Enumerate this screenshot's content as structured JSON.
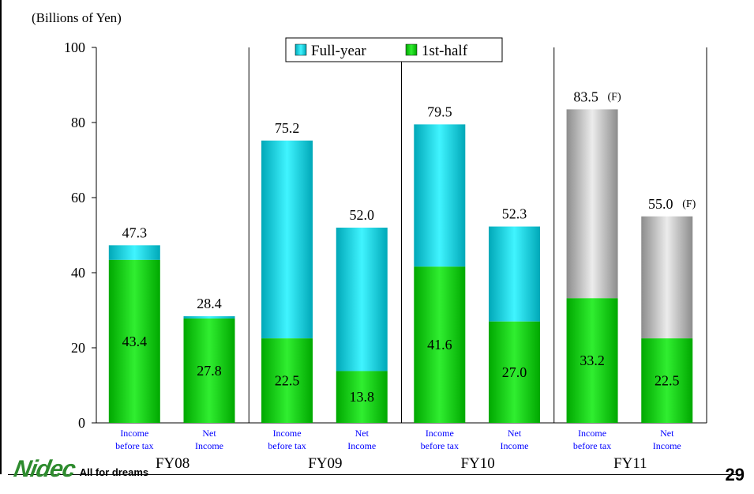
{
  "chart_data": {
    "type": "bar",
    "stacked": true,
    "unit_label": "(Billions of Yen)",
    "ylim": [
      0,
      100
    ],
    "yticks": [
      0,
      20,
      40,
      60,
      80,
      100
    ],
    "grid": false,
    "legend_position": "top-center",
    "legend": [
      {
        "label": "Full-year",
        "color": "#00c8d8"
      },
      {
        "label": "1st-half",
        "color": "#00c000"
      }
    ],
    "groups": [
      {
        "label": "FY08",
        "bars": [
          {
            "category": [
              "Income",
              "before tax"
            ],
            "full_year": 47.3,
            "first_half": 43.4,
            "full_year_label": "47.3",
            "first_half_label": "43.4",
            "forecast": false
          },
          {
            "category": [
              "Net",
              "Income"
            ],
            "full_year": 28.4,
            "first_half": 27.8,
            "full_year_label": "28.4",
            "first_half_label": "27.8",
            "forecast": false
          }
        ]
      },
      {
        "label": "FY09",
        "bars": [
          {
            "category": [
              "Income",
              "before tax"
            ],
            "full_year": 75.2,
            "first_half": 22.5,
            "full_year_label": "75.2",
            "first_half_label": "22.5",
            "forecast": false
          },
          {
            "category": [
              "Net",
              "Income"
            ],
            "full_year": 52.0,
            "first_half": 13.8,
            "full_year_label": "52.0",
            "first_half_label": "13.8",
            "forecast": false
          }
        ]
      },
      {
        "label": "FY10",
        "bars": [
          {
            "category": [
              "Income",
              "before tax"
            ],
            "full_year": 79.5,
            "first_half": 41.6,
            "full_year_label": "79.5",
            "first_half_label": "41.6",
            "forecast": false
          },
          {
            "category": [
              "Net",
              "Income"
            ],
            "full_year": 52.3,
            "first_half": 27.0,
            "full_year_label": "52.3",
            "first_half_label": "27.0",
            "forecast": false
          }
        ]
      },
      {
        "label": "FY11",
        "bars": [
          {
            "category": [
              "Income",
              "before tax"
            ],
            "full_year": 83.5,
            "first_half": 33.2,
            "full_year_label": "83.5",
            "first_half_label": "33.2",
            "forecast": true
          },
          {
            "category": [
              "Net",
              "Income"
            ],
            "full_year": 55.0,
            "first_half": 22.5,
            "full_year_label": "55.0",
            "first_half_label": "22.5",
            "forecast": true
          }
        ]
      }
    ],
    "forecast_marker": "(F)",
    "forecast_color": "#b8b8b8"
  },
  "footer": {
    "logo_text": "Nidec",
    "tagline": "All for dreams",
    "page_number": "29"
  }
}
